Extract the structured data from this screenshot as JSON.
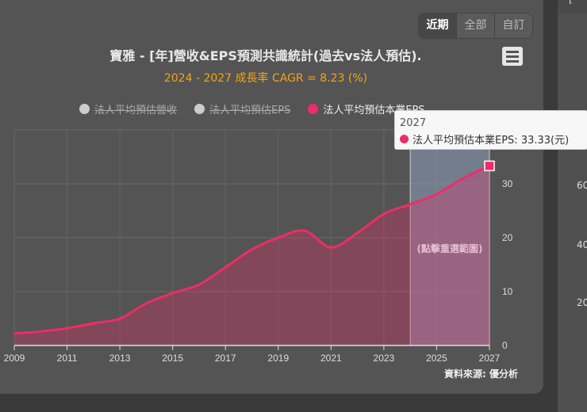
{
  "range_buttons": [
    "近期",
    "全部",
    "自訂"
  ],
  "active_range": "近期",
  "header": {
    "title": "寶雅 - [年]營收&EPS預測共識統計(過去vs法人預估).",
    "subtitle": "2024 - 2027 成長率 CAGR = 8.23 (%)",
    "menu_icon": "hamburger-icon"
  },
  "colors": {
    "series": "#ee2c6a",
    "hidden": "#cccccc",
    "subtitle": "#f2a516",
    "forecast_band": "#8a9ab0"
  },
  "chart_data": {
    "type": "area",
    "title": "寶雅 - [年]營收&EPS預測共識統計(過去vs法人預估).",
    "subtitle": "2024 - 2027 成長率 CAGR = 8.23 (%)",
    "legend": [
      {
        "name": "法人平均預估營收",
        "visible": false
      },
      {
        "name": "法人平均預估EPS",
        "visible": false
      },
      {
        "name": "法人平均預估本業EPS",
        "visible": true
      }
    ],
    "legend_placement": "top",
    "x": [
      2009,
      2010,
      2011,
      2012,
      2013,
      2014,
      2015,
      2016,
      2017,
      2018,
      2019,
      2020,
      2021,
      2022,
      2023,
      2024,
      2025,
      2026,
      2027
    ],
    "series": [
      {
        "name": "法人平均預估本業EPS",
        "values": [
          2.2,
          2.6,
          3.2,
          4.1,
          5.0,
          7.8,
          9.7,
          11.3,
          14.5,
          17.8,
          20.0,
          21.3,
          18.2,
          20.9,
          24.4,
          26.2,
          28.1,
          31.0,
          33.33
        ]
      }
    ],
    "x_ticks": [
      "2009",
      "2011",
      "2013",
      "2015",
      "2017",
      "2019",
      "2021",
      "2023",
      "2025",
      "2027"
    ],
    "y_ticks": [
      "0",
      "10",
      "20",
      "30"
    ],
    "xlim": [
      2009,
      2027
    ],
    "ylim": [
      0,
      40
    ],
    "y_axis_side": "right",
    "grid": true,
    "forecast_range": [
      2024,
      2027
    ],
    "forecast_label": "(點擊重選範圍)",
    "tooltip": {
      "year": "2027",
      "text": "法人平均預估本業EPS: 33.33(元)"
    },
    "source": "資料來源: 優分析"
  },
  "side_panel": {
    "header": "[-",
    "y_ticks": [
      "60",
      "40",
      "20"
    ]
  }
}
